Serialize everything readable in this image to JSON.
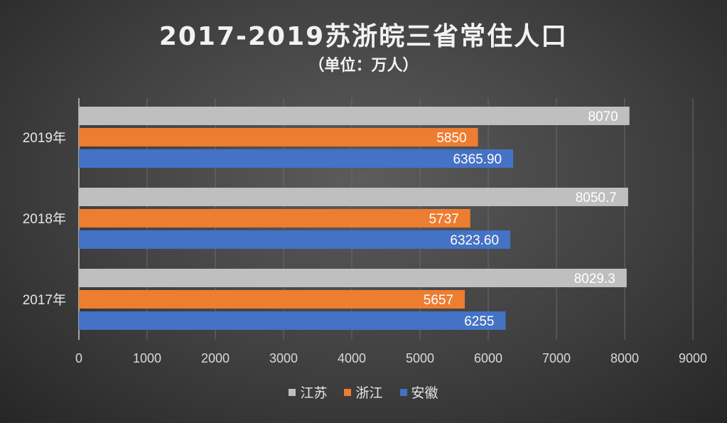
{
  "chart_data": {
    "type": "bar",
    "orientation": "horizontal",
    "title": "2017-2019苏浙皖三省常住人口",
    "subtitle": "（单位：万人）",
    "categories": [
      "2019年",
      "2018年",
      "2017年"
    ],
    "series": [
      {
        "name": "江苏",
        "color": "#bfbfbf",
        "values": [
          8070,
          8050.7,
          8029.3
        ],
        "labels": [
          "8070",
          "8050.7",
          "8029.3"
        ]
      },
      {
        "name": "浙江",
        "color": "#ed7d31",
        "values": [
          5850,
          5737,
          5657
        ],
        "labels": [
          "5850",
          "5737",
          "5657"
        ]
      },
      {
        "name": "安徽",
        "color": "#4472c4",
        "values": [
          6365.9,
          6323.6,
          6255
        ],
        "labels": [
          "6365.90",
          "6323.60",
          "6255"
        ]
      }
    ],
    "xlim": [
      0,
      9000
    ],
    "xticks": [
      "0",
      "1000",
      "2000",
      "3000",
      "4000",
      "5000",
      "6000",
      "7000",
      "8000",
      "9000"
    ],
    "grid": "vertical",
    "legend_position": "bottom"
  }
}
